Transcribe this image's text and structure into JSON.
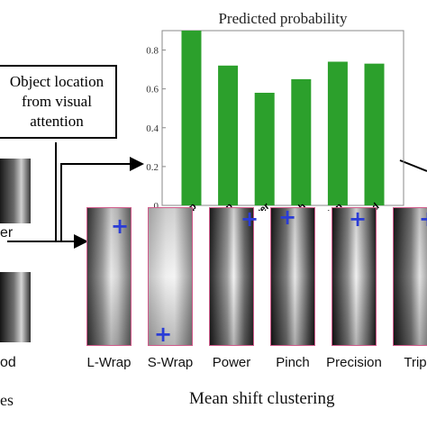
{
  "attention_box": {
    "text": "Object location from visual attention"
  },
  "left_panel": {
    "label_top": "er",
    "label_bottom": "od",
    "caption": "es"
  },
  "clusters": {
    "caption": "Mean shift clustering",
    "labels": [
      "L-Wrap",
      "S-Wrap",
      "Power",
      "Pinch",
      "Precision",
      "Trip"
    ]
  },
  "colors": {
    "bar": "#2ca02c",
    "marker": "#2a3cd6",
    "frame": "#d05a8a"
  },
  "chart_data": {
    "type": "bar",
    "title": "Predicted probability",
    "categories": [
      "L-Wrap",
      "S-Wrap",
      "Power",
      "Pinch",
      "Precision",
      "Tripod"
    ],
    "values": [
      0.9,
      0.72,
      0.58,
      0.65,
      0.74,
      0.73
    ],
    "ylim": [
      0,
      0.9
    ],
    "yticks": [
      "0",
      "0.2",
      "0.4",
      "0.6",
      "0.8"
    ],
    "xlabel": "",
    "ylabel": ""
  }
}
